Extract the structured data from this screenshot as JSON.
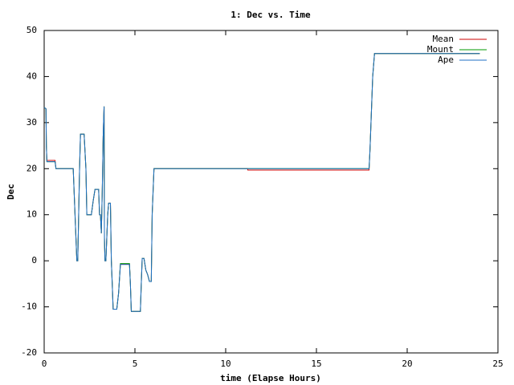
{
  "chart_data": {
    "type": "line",
    "title": "1: Dec vs. Time",
    "x_label": "time (Elapse Hours)",
    "y_label": "Dec",
    "x": [
      0,
      0.1,
      0.12,
      0.15,
      0.6,
      0.65,
      1.6,
      1.7,
      1.75,
      1.8,
      1.85,
      1.9,
      1.95,
      2.0,
      2.2,
      2.3,
      2.35,
      2.6,
      2.7,
      2.8,
      3.0,
      3.05,
      3.1,
      3.15,
      3.2,
      3.25,
      3.3,
      3.32,
      3.35,
      3.4,
      3.5,
      3.55,
      3.65,
      3.7,
      3.75,
      3.8,
      4.0,
      4.1,
      4.2,
      4.7,
      4.75,
      4.8,
      5.3,
      5.35,
      5.4,
      5.5,
      5.6,
      5.7,
      5.8,
      5.9,
      5.95,
      6.05,
      11.2,
      11.22,
      17.9,
      17.95,
      18.1,
      18.2,
      24.0
    ],
    "series": [
      {
        "name": "Mean",
        "color": "#cc0000",
        "values": [
          33.3,
          33,
          25,
          21.8,
          21.8,
          20,
          20,
          10,
          5,
          0,
          0,
          10,
          20,
          27.5,
          27.5,
          20,
          10,
          10,
          13,
          15.5,
          15.5,
          10,
          10,
          6,
          15,
          27,
          33.5,
          5,
          0,
          0,
          10,
          12.5,
          12.5,
          0,
          -5,
          -10.5,
          -10.5,
          -7,
          -0.7,
          -0.7,
          -5,
          -11,
          -11,
          -5,
          0.5,
          0.5,
          -2,
          -3,
          -4.5,
          -4.5,
          10,
          20,
          20,
          19.7,
          19.7,
          24,
          40,
          45,
          45
        ]
      },
      {
        "name": "Mount",
        "color": "#009900",
        "values": [
          33.3,
          33,
          25,
          21.5,
          21.5,
          20,
          20,
          10,
          5,
          0,
          0,
          10,
          20,
          27.5,
          27.5,
          20,
          10,
          10,
          13,
          15.5,
          15.5,
          10,
          10,
          6,
          15,
          27,
          33.5,
          5,
          0,
          0,
          10,
          12.5,
          12.5,
          0,
          -5,
          -10.5,
          -10.5,
          -7,
          -0.6,
          -0.6,
          -5,
          -11,
          -11,
          -5,
          0.5,
          0.5,
          -2,
          -3,
          -4.5,
          -4.5,
          10,
          20,
          20,
          20,
          20,
          24,
          40,
          45,
          45
        ]
      },
      {
        "name": "Ape",
        "color": "#1f6fc4",
        "values": [
          33.3,
          33,
          25,
          21.5,
          21.5,
          20,
          20,
          10,
          5,
          0,
          0,
          10,
          20,
          27.5,
          27.5,
          20,
          10,
          10,
          13,
          15.5,
          15.5,
          10,
          10,
          6,
          15,
          27,
          33.5,
          5,
          0,
          0,
          10,
          12.5,
          12.5,
          0,
          -5,
          -10.5,
          -10.5,
          -7,
          -0.8,
          -0.8,
          -5,
          -11,
          -11,
          -5,
          0.5,
          0.5,
          -2,
          -3,
          -4.5,
          -4.5,
          10,
          20,
          20,
          20,
          20,
          24,
          40,
          45,
          45
        ]
      }
    ],
    "xlim": [
      0,
      25
    ],
    "xticks": [
      0,
      5,
      10,
      15,
      20,
      25
    ],
    "ylim": [
      -20,
      50
    ],
    "yticks": [
      -20,
      -10,
      0,
      10,
      20,
      30,
      40,
      50
    ],
    "legend": "top-right"
  }
}
